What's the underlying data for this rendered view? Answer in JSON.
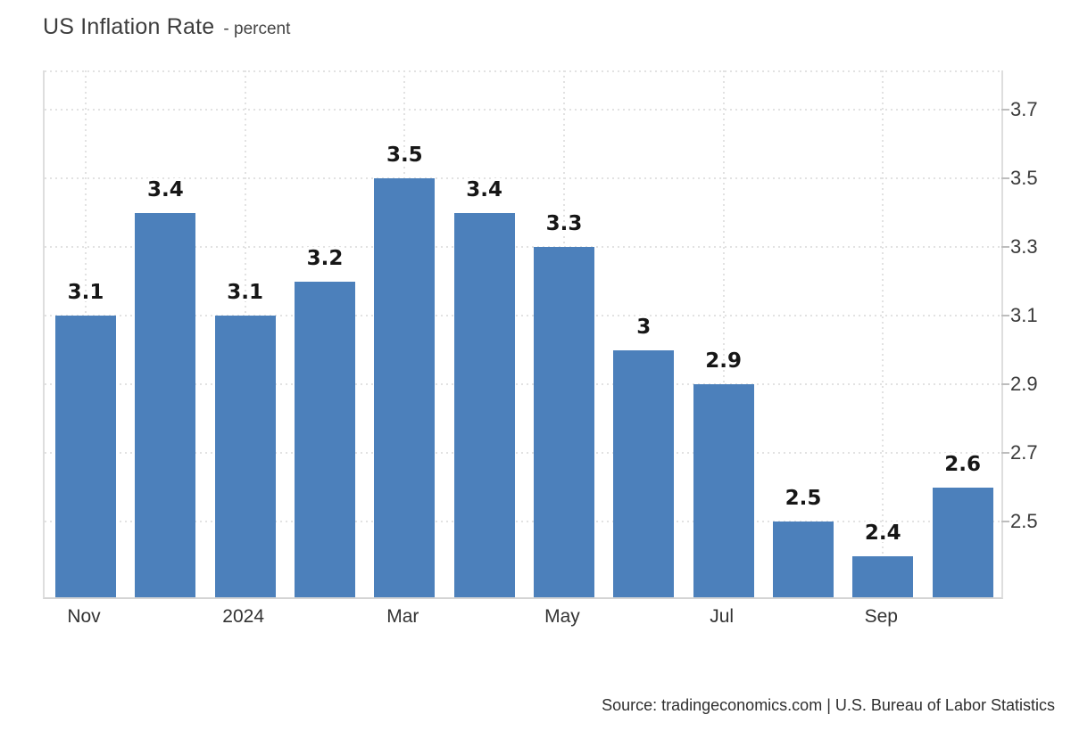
{
  "header": {
    "title": "US Inflation Rate",
    "subtitle": "- percent"
  },
  "footer": {
    "source": "Source: tradingeconomics.com | U.S. Bureau of Labor Statistics"
  },
  "chart_data": {
    "type": "bar",
    "title": "US Inflation Rate",
    "ylabel": "percent",
    "values": [
      3.1,
      3.4,
      3.1,
      3.2,
      3.5,
      3.4,
      3.3,
      3,
      2.9,
      2.5,
      2.4,
      2.6
    ],
    "bar_value_labels": [
      "3.1",
      "3.4",
      "3.1",
      "3.2",
      "3.5",
      "3.4",
      "3.3",
      "3",
      "2.9",
      "2.5",
      "2.4",
      "2.6"
    ],
    "x_tick_labels": [
      "Nov",
      "2024",
      "Mar",
      "May",
      "Jul",
      "Sep"
    ],
    "x_tick_bar_indices": [
      0,
      2,
      4,
      6,
      8,
      10
    ],
    "y_tick_labels": [
      "2.5",
      "2.7",
      "2.9",
      "3.1",
      "3.3",
      "3.5",
      "3.7"
    ],
    "y_tick_values": [
      2.5,
      2.7,
      2.9,
      3.1,
      3.3,
      3.5,
      3.7
    ],
    "ylim": [
      2.28,
      3.815
    ],
    "bar_color": "#4C80BB",
    "grid": "dotted",
    "legend": "none",
    "y_axis_side": "right"
  }
}
